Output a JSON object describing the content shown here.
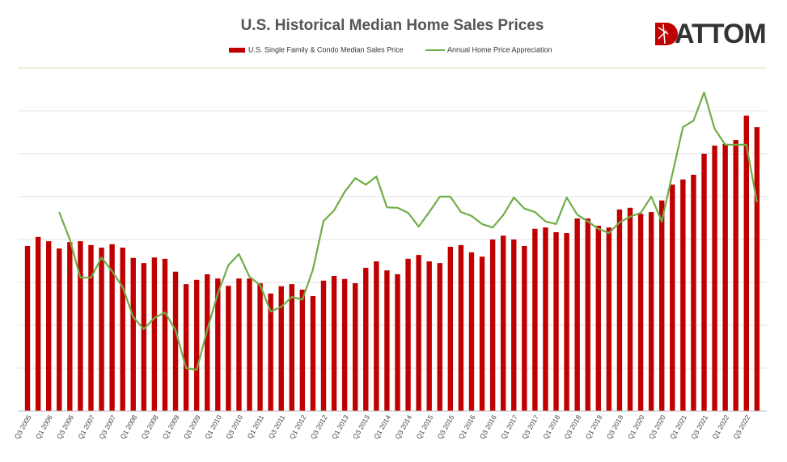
{
  "chart_data": {
    "type": "combo",
    "title": "U.S. Historical Median Home Sales Prices",
    "logo": "ATTOM",
    "categories": [
      "Q3 2005",
      null,
      "Q1 2006",
      null,
      "Q3 2006",
      null,
      "Q1 2007",
      null,
      "Q3 2007",
      null,
      "Q1 2008",
      null,
      "Q3 2008",
      null,
      "Q1 2009",
      null,
      "Q3 2009",
      null,
      "Q1 2010",
      null,
      "Q3 2010",
      null,
      "Q1 2011",
      null,
      "Q3 2011",
      null,
      "Q1 2012",
      null,
      "Q3 2012",
      null,
      "Q1 2013",
      null,
      "Q3 2013",
      null,
      "Q1 2014",
      null,
      "Q3 2014",
      null,
      "Q1 2015",
      null,
      "Q3 2015",
      null,
      "Q1 2016",
      null,
      "Q3 2016",
      null,
      "Q1 2017",
      null,
      "Q3 2017",
      null,
      "Q1 2018",
      null,
      "Q3 2018",
      null,
      "Q1 2019",
      null,
      "Q3 2019",
      null,
      "Q1 2020",
      null,
      "Q3 2020",
      null,
      "Q1 2021",
      null,
      "Q3 2021",
      null,
      "Q1 2022",
      null,
      "Q3 2022",
      null
    ],
    "series": [
      {
        "name": "U.S. Single Family & Condo Median Sales Price",
        "type": "bar",
        "color": "#c00000",
        "values": [
          3.85,
          4.06,
          3.96,
          3.79,
          3.94,
          3.96,
          3.87,
          3.81,
          3.89,
          3.81,
          3.57,
          3.45,
          3.58,
          3.55,
          3.25,
          2.96,
          3.06,
          3.19,
          3.09,
          2.92,
          3.09,
          3.09,
          2.98,
          2.74,
          2.91,
          2.96,
          2.83,
          2.68,
          3.04,
          3.15,
          3.08,
          2.98,
          3.34,
          3.49,
          3.28,
          3.19,
          3.55,
          3.64,
          3.49,
          3.45,
          3.83,
          3.87,
          3.7,
          3.6,
          4.0,
          4.09,
          4.0,
          3.85,
          4.25,
          4.28,
          4.17,
          4.15,
          4.49,
          4.49,
          4.32,
          4.28,
          4.7,
          4.74,
          4.6,
          4.64,
          4.91,
          5.28,
          5.4,
          5.51,
          6.0,
          6.19,
          6.23,
          6.32,
          6.89,
          6.62
        ]
      },
      {
        "name": "Annual Home Price Appreciation",
        "type": "line",
        "color": "#70ad47",
        "values": [
          null,
          null,
          null,
          4.64,
          4.0,
          3.11,
          3.11,
          3.58,
          3.26,
          2.89,
          2.19,
          1.91,
          2.17,
          2.3,
          1.89,
          1.0,
          0.96,
          1.89,
          2.74,
          3.4,
          3.66,
          3.13,
          2.94,
          2.32,
          2.43,
          2.66,
          2.6,
          3.3,
          4.43,
          4.68,
          5.11,
          5.43,
          5.28,
          5.47,
          4.75,
          4.74,
          4.62,
          4.3,
          4.64,
          5.0,
          5.0,
          4.64,
          4.55,
          4.36,
          4.28,
          4.57,
          4.98,
          4.72,
          4.64,
          4.42,
          4.36,
          4.98,
          4.58,
          4.42,
          4.25,
          4.15,
          4.4,
          4.53,
          4.62,
          5.0,
          4.42,
          5.53,
          6.62,
          6.77,
          7.43,
          6.58,
          6.21,
          6.21,
          6.21,
          4.87
        ]
      }
    ],
    "ylim": [
      0,
      8
    ],
    "yticks": [
      0,
      1,
      2,
      3,
      4,
      5,
      6,
      7,
      8
    ],
    "grid": true
  }
}
